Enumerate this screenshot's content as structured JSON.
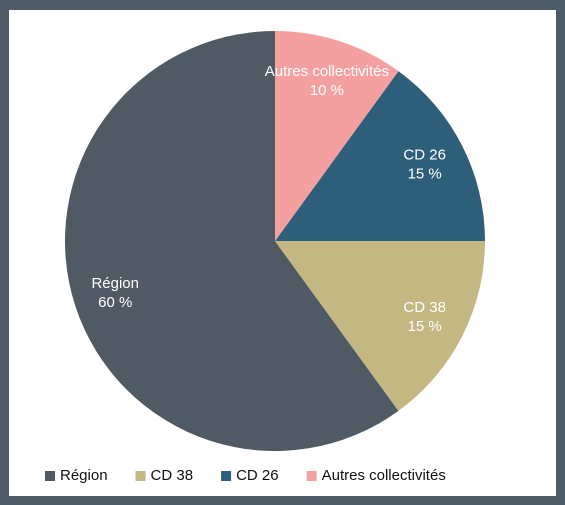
{
  "chart_data": {
    "type": "pie",
    "categories": [
      "Région",
      "CD 38",
      "CD 26",
      "Autres collectivités"
    ],
    "values": [
      60,
      15,
      15,
      10
    ],
    "value_labels": [
      "60 %",
      "15 %",
      "15 %",
      "10 %"
    ],
    "colors": [
      "#4f5a65",
      "#c4b882",
      "#2e5f7a",
      "#f4a0a0"
    ],
    "legend": "bottom"
  }
}
